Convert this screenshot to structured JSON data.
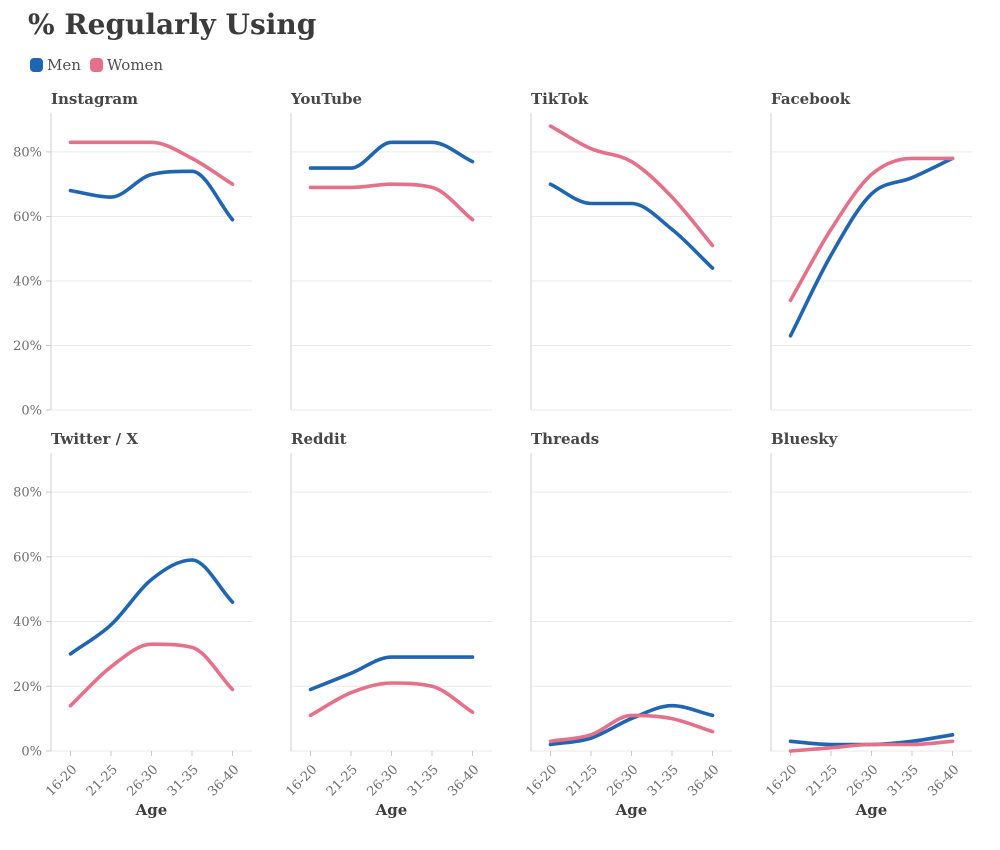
{
  "page": {
    "title": "% Regularly Using"
  },
  "legend": [
    {
      "label": "Men",
      "color": "#2065b2"
    },
    {
      "label": "Women",
      "color": "#e4708a"
    }
  ],
  "chart_data": {
    "type": "line",
    "layout": "small-multiples 2 rows x 4 cols",
    "title": "% Regularly Using",
    "x_axis_label": "Age",
    "categories": [
      "16-20",
      "21-25",
      "26-30",
      "31-35",
      "36-40"
    ],
    "y_ticks": [
      "0%",
      "20%",
      "40%",
      "60%",
      "80%"
    ],
    "y_tick_values": [
      0,
      20,
      40,
      60,
      80
    ],
    "ylim": [
      0,
      93
    ],
    "grid": true,
    "legend_position": "top-left",
    "line_style": "smooth monotone curves, no markers",
    "subplots": [
      {
        "title": "Instagram",
        "series": [
          {
            "name": "Men",
            "values": [
              68,
              66,
              73,
              74,
              59
            ]
          },
          {
            "name": "Women",
            "values": [
              83,
              83,
              83,
              78,
              70
            ]
          }
        ]
      },
      {
        "title": "YouTube",
        "series": [
          {
            "name": "Men",
            "values": [
              75,
              75,
              83,
              83,
              77
            ]
          },
          {
            "name": "Women",
            "values": [
              69,
              69,
              70,
              69,
              59
            ]
          }
        ]
      },
      {
        "title": "TikTok",
        "series": [
          {
            "name": "Men",
            "values": [
              70,
              64,
              64,
              56,
              44
            ]
          },
          {
            "name": "Women",
            "values": [
              88,
              81,
              77,
              66,
              51
            ]
          }
        ]
      },
      {
        "title": "Facebook",
        "series": [
          {
            "name": "Men",
            "values": [
              23,
              48,
              67,
              72,
              78
            ]
          },
          {
            "name": "Women",
            "values": [
              34,
              56,
              73,
              78,
              78
            ]
          }
        ]
      },
      {
        "title": "Twitter / X",
        "series": [
          {
            "name": "Men",
            "values": [
              30,
              39,
              53,
              59,
              46
            ]
          },
          {
            "name": "Women",
            "values": [
              14,
              26,
              33,
              32,
              19
            ]
          }
        ]
      },
      {
        "title": "Reddit",
        "series": [
          {
            "name": "Men",
            "values": [
              19,
              24,
              29,
              29,
              29
            ]
          },
          {
            "name": "Women",
            "values": [
              11,
              18,
              21,
              20,
              12
            ]
          }
        ]
      },
      {
        "title": "Threads",
        "series": [
          {
            "name": "Men",
            "values": [
              2,
              4,
              10,
              14,
              11
            ]
          },
          {
            "name": "Women",
            "values": [
              3,
              5,
              11,
              10,
              6
            ]
          }
        ]
      },
      {
        "title": "Bluesky",
        "series": [
          {
            "name": "Men",
            "values": [
              3,
              2,
              2,
              3,
              5
            ]
          },
          {
            "name": "Women",
            "values": [
              0,
              1,
              2,
              2,
              3
            ]
          }
        ]
      }
    ]
  }
}
